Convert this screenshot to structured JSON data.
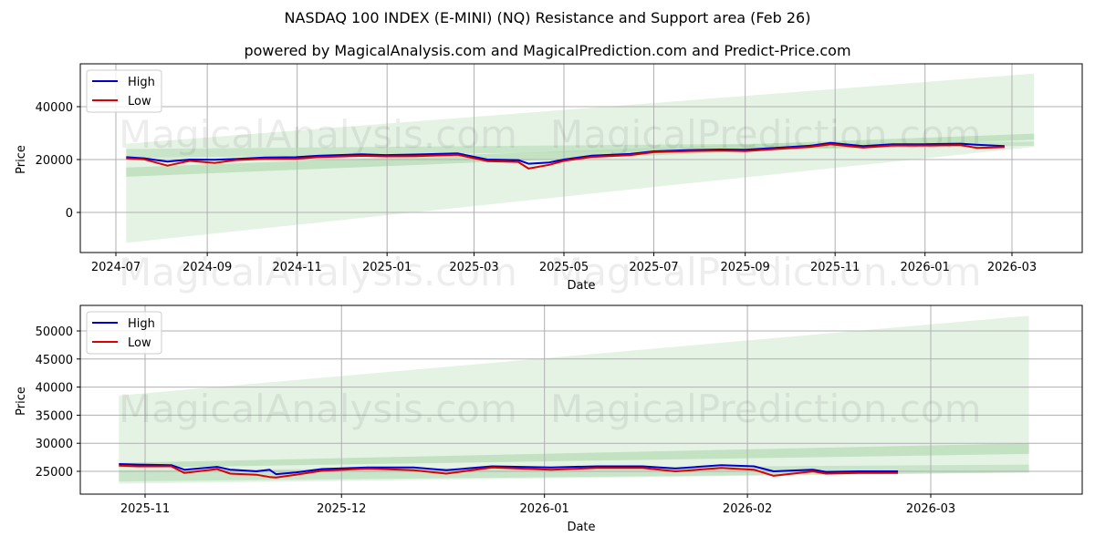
{
  "title": "NASDAQ 100 INDEX (E-MINI) (NQ) Resistance and Support area (Feb 26)",
  "subtitle": "powered by MagicalAnalysis.com and MagicalPrediction.com and Predict-Price.com",
  "watermarks": [
    "MagicalAnalysis.com",
    "MagicalPrediction.com"
  ],
  "colors": {
    "high": "#0000cc",
    "low": "#dd0000",
    "band_light": "#c8e6c9",
    "band_dark": "#a5d6a7",
    "grid": "#b0b0b0"
  },
  "chart_data": [
    {
      "type": "line",
      "title": "",
      "xlabel": "Date",
      "ylabel": "Price",
      "ylim": [
        -15000,
        55000
      ],
      "yticks": [
        0,
        20000,
        40000
      ],
      "xticks": [
        "2024-07",
        "2024-09",
        "2024-11",
        "2025-01",
        "2025-03",
        "2025-05",
        "2025-07",
        "2025-09",
        "2025-11",
        "2026-01",
        "2026-03"
      ],
      "grid": true,
      "legend": {
        "position": "upper left",
        "entries": [
          "High",
          "Low"
        ]
      },
      "x": [
        "2024-07-08",
        "2024-07-20",
        "2024-08-05",
        "2024-08-20",
        "2024-09-06",
        "2024-09-20",
        "2024-10-10",
        "2024-10-31",
        "2024-11-15",
        "2024-12-15",
        "2024-12-31",
        "2025-01-20",
        "2025-02-18",
        "2025-03-10",
        "2025-03-31",
        "2025-04-07",
        "2025-04-21",
        "2025-05-01",
        "2025-05-20",
        "2025-06-15",
        "2025-07-01",
        "2025-07-25",
        "2025-08-15",
        "2025-09-01",
        "2025-09-25",
        "2025-10-15",
        "2025-10-29",
        "2025-11-20",
        "2025-12-10",
        "2026-01-01",
        "2026-01-25",
        "2026-02-05",
        "2026-02-24"
      ],
      "series": [
        {
          "name": "High",
          "values": [
            20900,
            20500,
            19200,
            20000,
            19900,
            20200,
            20800,
            20900,
            21400,
            22000,
            21700,
            21900,
            22300,
            20000,
            19800,
            18400,
            18900,
            20000,
            21500,
            22100,
            23100,
            23600,
            23800,
            23700,
            24500,
            25200,
            26300,
            25100,
            25800,
            25800,
            26000,
            25600,
            25100
          ]
        },
        {
          "name": "Low",
          "values": [
            20500,
            20100,
            17700,
            19500,
            18700,
            19800,
            20300,
            20300,
            20900,
            21400,
            21200,
            21300,
            21800,
            19400,
            19100,
            16600,
            18000,
            19500,
            21000,
            21700,
            22800,
            23200,
            23400,
            23200,
            24100,
            24800,
            25800,
            24500,
            25300,
            25300,
            25500,
            24400,
            24700
          ]
        }
      ],
      "bands": [
        {
          "name": "outer-range",
          "x": [
            "2024-07-08",
            "2026-03-16"
          ],
          "upper": [
            26000,
            52500
          ],
          "lower": [
            -11500,
            24800
          ]
        },
        {
          "name": "resistance",
          "x": [
            "2024-07-08",
            "2026-03-16"
          ],
          "upper": [
            17000,
            29800
          ],
          "lower": [
            13500,
            27500
          ]
        },
        {
          "name": "support",
          "x": [
            "2024-07-08",
            "2026-03-16"
          ],
          "upper": [
            24000,
            26800
          ],
          "lower": [
            20500,
            25200
          ]
        }
      ]
    },
    {
      "type": "line",
      "title": "",
      "xlabel": "Date",
      "ylabel": "Price",
      "ylim": [
        21000,
        54500
      ],
      "yticks": [
        25000,
        30000,
        35000,
        40000,
        45000,
        50000
      ],
      "xticks": [
        "2025-11",
        "2025-12",
        "2026-01",
        "2026-02",
        "2026-03"
      ],
      "grid": true,
      "legend": {
        "position": "upper left",
        "entries": [
          "High",
          "Low"
        ]
      },
      "x": [
        "2025-10-28",
        "2025-10-31",
        "2025-11-05",
        "2025-11-07",
        "2025-11-12",
        "2025-11-14",
        "2025-11-18",
        "2025-11-20",
        "2025-11-21",
        "2025-11-24",
        "2025-11-28",
        "2025-12-05",
        "2025-12-12",
        "2025-12-17",
        "2025-12-24",
        "2026-01-02",
        "2026-01-09",
        "2026-01-16",
        "2026-01-21",
        "2026-01-28",
        "2026-02-02",
        "2026-02-05",
        "2026-02-11",
        "2026-02-13",
        "2026-02-18",
        "2026-02-24"
      ],
      "series": [
        {
          "name": "High",
          "values": [
            26300,
            26200,
            26100,
            25300,
            25800,
            25300,
            25000,
            25300,
            24500,
            24800,
            25400,
            25700,
            25700,
            25200,
            25900,
            25700,
            25900,
            25900,
            25500,
            26100,
            25900,
            25000,
            25300,
            24900,
            25000,
            25000
          ]
        },
        {
          "name": "Low",
          "values": [
            26000,
            25900,
            25900,
            24700,
            25400,
            24600,
            24400,
            24000,
            23900,
            24400,
            25100,
            25500,
            25200,
            24600,
            25700,
            25300,
            25600,
            25600,
            25000,
            25600,
            25300,
            24200,
            25000,
            24600,
            24700,
            24700
          ]
        }
      ],
      "bands": [
        {
          "name": "outer-range",
          "x": [
            "2025-10-28",
            "2026-03-16"
          ],
          "upper": [
            38500,
            52700
          ],
          "lower": [
            22800,
            24800
          ]
        },
        {
          "name": "resistance",
          "x": [
            "2025-10-28",
            "2026-03-16"
          ],
          "upper": [
            26500,
            30000
          ],
          "lower": [
            25600,
            28100
          ]
        },
        {
          "name": "support",
          "x": [
            "2025-10-28",
            "2026-03-16"
          ],
          "upper": [
            25200,
            26200
          ],
          "lower": [
            23200,
            24800
          ]
        }
      ]
    }
  ]
}
